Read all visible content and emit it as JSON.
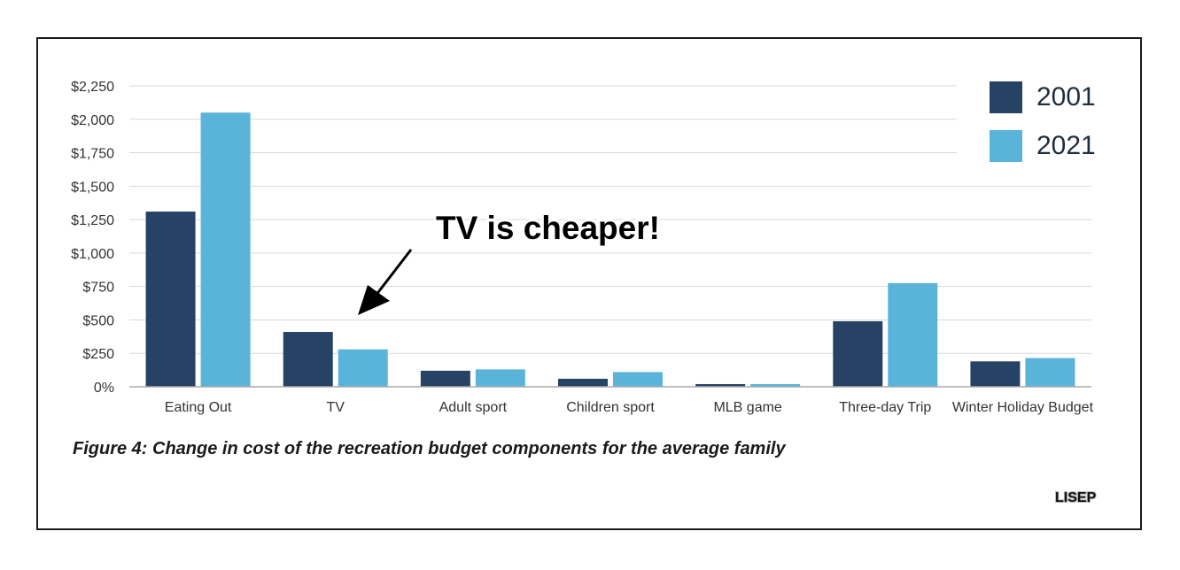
{
  "chart_data": {
    "type": "bar",
    "categories": [
      "Eating Out",
      "TV",
      "Adult sport",
      "Children sport",
      "MLB game",
      "Three-day Trip",
      "Winter Holiday Budget"
    ],
    "series": [
      {
        "name": "2001",
        "color": "#264365",
        "values": [
          1310,
          410,
          120,
          60,
          20,
          490,
          190
        ]
      },
      {
        "name": "2021",
        "color": "#5ab4da",
        "values": [
          2050,
          280,
          130,
          110,
          20,
          775,
          215
        ]
      }
    ],
    "y_ticks": [
      "0%",
      "$250",
      "$500",
      "$750",
      "$1,000",
      "$1,250",
      "$1,500",
      "$1,750",
      "$2,000",
      "$2,250"
    ],
    "ylim": [
      0,
      2250
    ],
    "grid": true,
    "legend_position": "top-right",
    "annotation": "TV is cheaper!",
    "caption": "Figure 4: Change in cost of the recreation budget components for the average family",
    "source_label": "LISEP"
  }
}
